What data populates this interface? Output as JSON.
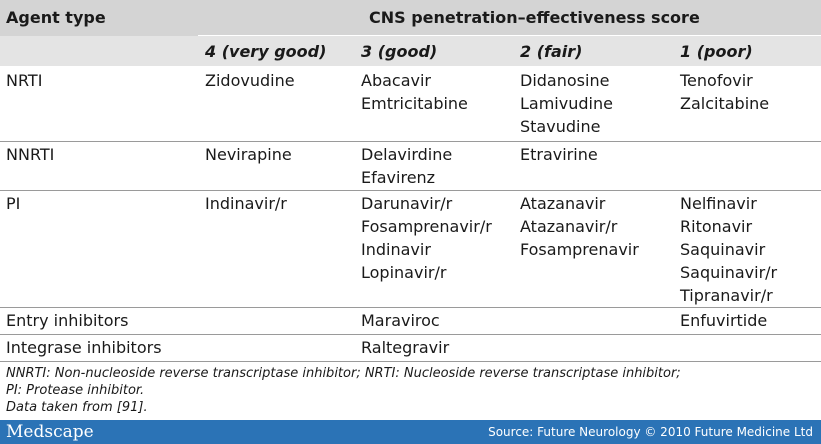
{
  "table": {
    "header": {
      "agent_type": "Agent type",
      "group": "CNS penetration–effectiveness score",
      "score_columns": [
        "4 (very good)",
        "3 (good)",
        "2 (fair)",
        "1 (poor)"
      ]
    },
    "rows": [
      {
        "agent": "NRTI",
        "cells": [
          [
            "Zidovudine"
          ],
          [
            "Abacavir",
            "Emtricitabine"
          ],
          [
            "Didanosine",
            "Lamivudine",
            "Stavudine"
          ],
          [
            "Tenofovir",
            "Zalcitabine"
          ]
        ]
      },
      {
        "agent": "NNRTI",
        "cells": [
          [
            "Nevirapine"
          ],
          [
            "Delavirdine",
            "Efavirenz"
          ],
          [
            "Etravirine"
          ],
          []
        ]
      },
      {
        "agent": "PI",
        "cells": [
          [
            "Indinavir/r"
          ],
          [
            "Darunavir/r",
            "Fosamprenavir/r",
            "Indinavir",
            "Lopinavir/r"
          ],
          [
            "Atazanavir",
            "Atazanavir/r",
            "Fosamprenavir"
          ],
          [
            "Nelfinavir",
            "Ritonavir",
            "Saquinavir",
            "Saquinavir/r",
            "Tipranavir/r"
          ]
        ]
      },
      {
        "agent": "Entry inhibitors",
        "cells": [
          [],
          [
            "Maraviroc"
          ],
          [],
          [
            "Enfuvirtide"
          ]
        ]
      },
      {
        "agent": "Integrase inhibitors",
        "cells": [
          [],
          [
            "Raltegravir"
          ],
          [],
          []
        ]
      }
    ]
  },
  "notes": [
    "NNRTI: Non-nucleoside reverse transcriptase inhibitor; NRTI: Nucleoside reverse transcriptase inhibitor;",
    "PI: Protease inhibitor.",
    "Data taken from [91]."
  ],
  "footer": {
    "logo": "Medscape",
    "source": "Source: Future Neurology © 2010 Future Medicine Ltd"
  }
}
